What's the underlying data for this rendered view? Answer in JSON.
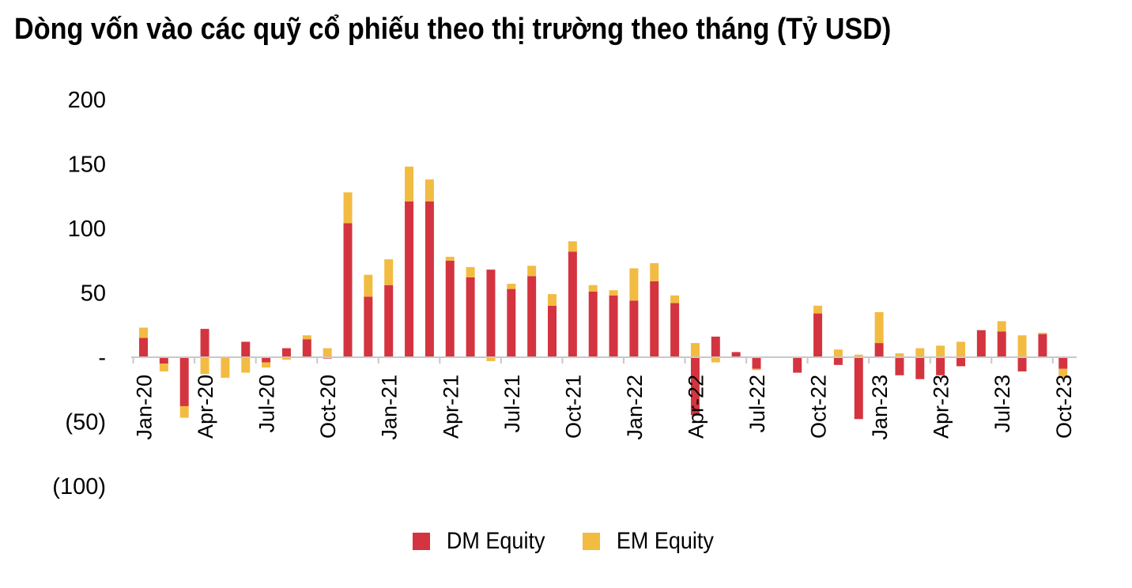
{
  "chart_data": {
    "type": "bar",
    "stacked": true,
    "title": "Dòng vốn vào các quỹ cổ phiếu theo thị trường theo tháng (Tỷ USD)",
    "ylim": [
      -100,
      200
    ],
    "y_ticks": [
      {
        "value": 200,
        "label": "200"
      },
      {
        "value": 150,
        "label": "150"
      },
      {
        "value": 100,
        "label": "100"
      },
      {
        "value": 50,
        "label": "50"
      },
      {
        "value": 0,
        "label": "-"
      },
      {
        "value": -50,
        "label": "(50)"
      },
      {
        "value": -100,
        "label": "(100)"
      }
    ],
    "categories": [
      "Jan-20",
      "Feb-20",
      "Mar-20",
      "Apr-20",
      "May-20",
      "Jun-20",
      "Jul-20",
      "Aug-20",
      "Sep-20",
      "Oct-20",
      "Nov-20",
      "Dec-20",
      "Jan-21",
      "Feb-21",
      "Mar-21",
      "Apr-21",
      "May-21",
      "Jun-21",
      "Jul-21",
      "Aug-21",
      "Sep-21",
      "Oct-21",
      "Nov-21",
      "Dec-21",
      "Jan-22",
      "Feb-22",
      "Mar-22",
      "Apr-22",
      "May-22",
      "Jun-22",
      "Jul-22",
      "Aug-22",
      "Sep-22",
      "Oct-22",
      "Nov-22",
      "Dec-22",
      "Jan-23",
      "Feb-23",
      "Mar-23",
      "Apr-23",
      "May-23",
      "Jun-23",
      "Jul-23",
      "Aug-23",
      "Sep-23",
      "Oct-23"
    ],
    "x_tick_labels": [
      "Jan-20",
      "Apr-20",
      "Jul-20",
      "Oct-20",
      "Jan-21",
      "Apr-21",
      "Jul-21",
      "Oct-21",
      "Jan-22",
      "Apr-22",
      "Jul-22",
      "Oct-22",
      "Jan-23",
      "Apr-23",
      "Jul-23",
      "Oct-23"
    ],
    "series": [
      {
        "name": "DM Equity",
        "color": "#d4343f",
        "values": [
          15,
          -5,
          -38,
          22,
          0,
          12,
          -4,
          7,
          14,
          -1,
          104,
          47,
          56,
          121,
          121,
          75,
          62,
          68,
          53,
          63,
          40,
          82,
          51,
          48,
          44,
          59,
          42,
          -45,
          16,
          4,
          -9,
          0,
          -12,
          34,
          -6,
          -48,
          11,
          -14,
          -17,
          -14,
          -7,
          21,
          20,
          -11,
          18,
          -9
        ]
      },
      {
        "name": "EM Equity",
        "color": "#f2bc42",
        "values": [
          8,
          -6,
          -9,
          -13,
          -16,
          -12,
          -4,
          -2,
          3,
          7,
          24,
          17,
          20,
          27,
          17,
          3,
          8,
          -3,
          4,
          8,
          9,
          8,
          5,
          4,
          25,
          14,
          6,
          11,
          -4,
          0,
          -1,
          0,
          0,
          6,
          6,
          2,
          24,
          3,
          7,
          9,
          12,
          0,
          8,
          17,
          1,
          -7
        ]
      }
    ],
    "legend_position": "bottom"
  }
}
